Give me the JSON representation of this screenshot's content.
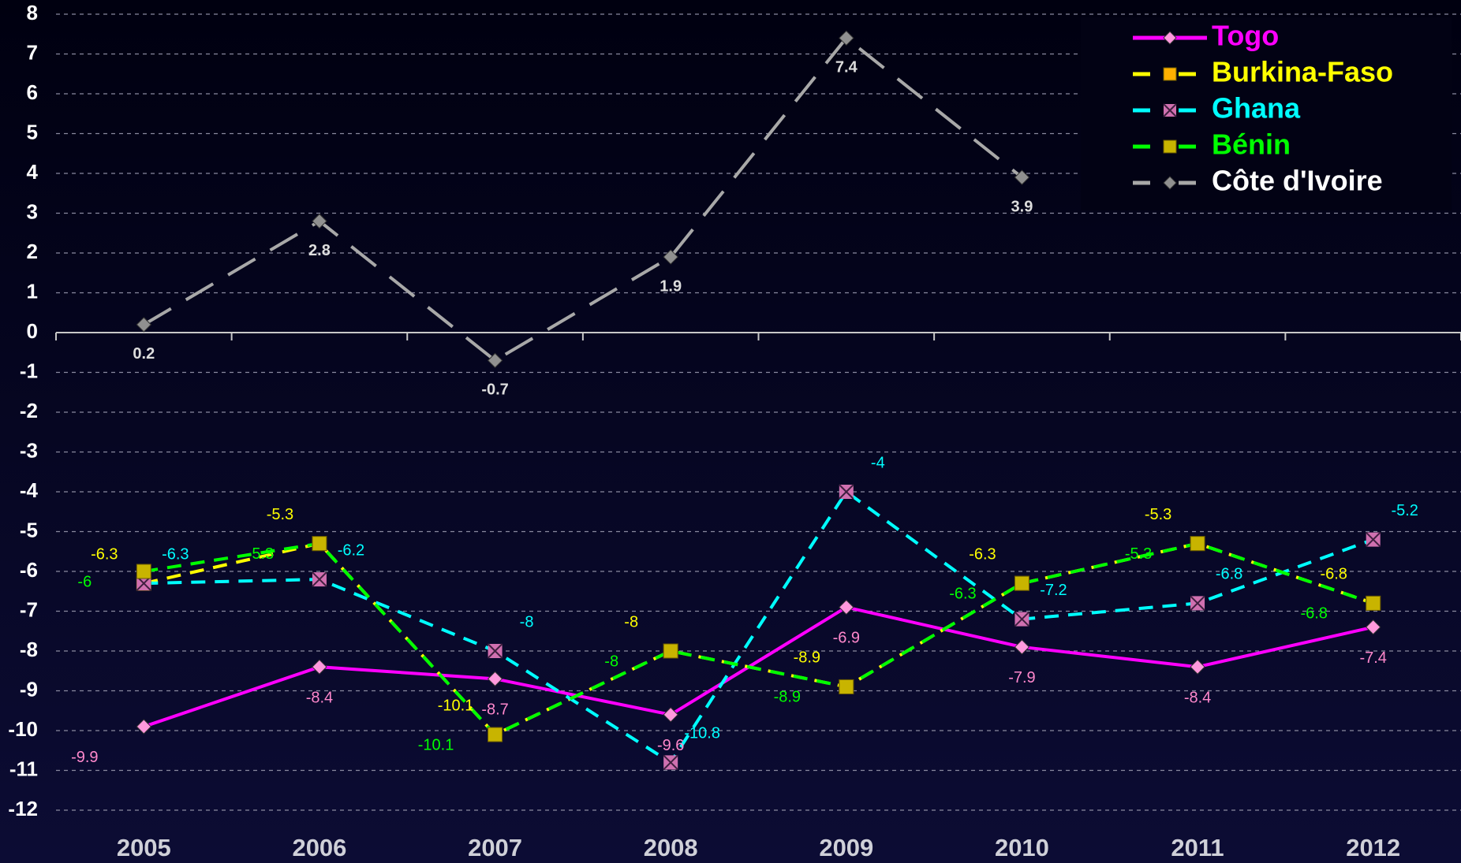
{
  "chart_data": {
    "type": "line",
    "categories": [
      "2005",
      "2006",
      "2007",
      "2008",
      "2009",
      "2010",
      "2011",
      "2012"
    ],
    "ylim": [
      -12,
      8
    ],
    "yticks": [
      -12,
      -11,
      -10,
      -9,
      -8,
      -7,
      -6,
      -5,
      -4,
      -3,
      -2,
      -1,
      0,
      1,
      2,
      3,
      4,
      5,
      6,
      7,
      8
    ],
    "grid": true,
    "legend": "top-right",
    "series": [
      {
        "name": "Togo",
        "color": "#ff00ff",
        "dash": "solid",
        "marker": "diamond",
        "marker_color": "#ff99dd",
        "label_color": "#ff88cc",
        "values": [
          -9.9,
          -8.4,
          -8.7,
          -9.6,
          -6.9,
          -7.9,
          -8.4,
          -7.4
        ]
      },
      {
        "name": "Burkina-Faso",
        "color": "#ffff00",
        "dash": "dashed",
        "marker": "square",
        "marker_color": "#ffb000",
        "label_color": "#ffff00",
        "values": [
          -6.3,
          -5.3,
          -10.1,
          -8,
          -8.9,
          -6.3,
          -5.3,
          -6.8
        ]
      },
      {
        "name": "Ghana",
        "color": "#00ffff",
        "dash": "dashed",
        "marker": "cross",
        "marker_color": "#d070b0",
        "label_color": "#00ffff",
        "values": [
          -6.3,
          -6.2,
          -8,
          -10.8,
          -4,
          -7.2,
          -6.8,
          -5.2
        ]
      },
      {
        "name": "Bénin",
        "color": "#00ff00",
        "dash": "dashed",
        "marker": "square",
        "marker_color": "#c8b400",
        "label_color": "#00ff00",
        "values": [
          -6,
          -5.3,
          -10.1,
          -8,
          -8.9,
          -6.3,
          -5.3,
          -6.8
        ]
      },
      {
        "name": "Côte d'Ivoire",
        "color": "#a8a8a8",
        "dash": "longdash",
        "marker": "diamond",
        "marker_color": "#909090",
        "label_color": "#dddddd",
        "values": [
          0.2,
          2.8,
          -0.7,
          1.9,
          7.4,
          3.9,
          null,
          null
        ]
      }
    ]
  }
}
